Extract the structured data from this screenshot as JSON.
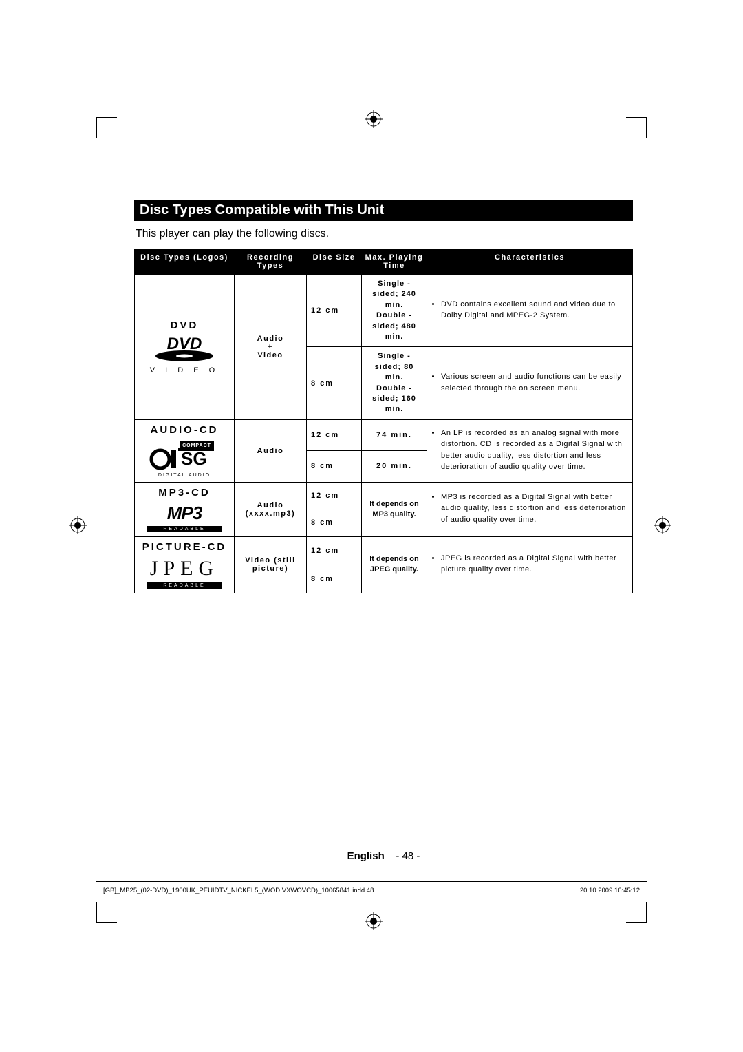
{
  "title": "Disc Types Compatible with This Unit",
  "intro": "This player can play the following discs.",
  "columns": {
    "c0": "Disc Types (Logos)",
    "c1": "Recording Types",
    "c2": "Disc Size",
    "c3": "Max. Playing Time",
    "c4": "Characteristics"
  },
  "dvd": {
    "name": "DVD",
    "logo_text": "DVD",
    "logo_sub": "V I D E O",
    "recording": "Audio\n+\nVideo",
    "size12": "12 cm",
    "size8": "8 cm",
    "time12": "Single - sided; 240 min.\nDouble - sided; 480 min.",
    "time8": "Single - sided; 80 min.\nDouble - sided; 160 min.",
    "char1": "DVD contains excellent sound and video due to Dolby Digital and MPEG-2 System.",
    "char2": "Various screen and audio functions can be easily selected through the on screen menu."
  },
  "audiocd": {
    "name": "AUDIO-CD",
    "logo_line1": "COMPACT",
    "logo_sub": "DIGITAL AUDIO",
    "recording": "Audio",
    "size12": "12 cm",
    "size8": "8 cm",
    "time12": "74 min.",
    "time8": "20 min.",
    "char": "An LP is recorded as an analog signal with more distortion. CD is recorded as a Digital Signal with better audio quality, less distortion and less deterioration of audio quality over time."
  },
  "mp3cd": {
    "name": "MP3-CD",
    "logo_text": "MP3",
    "logo_sub": "READABLE",
    "recording": "Audio (xxxx.mp3)",
    "size12": "12 cm",
    "size8": "8 cm",
    "depends": "It depends on MP3 quality.",
    "char": "MP3 is recorded as a Digital Signal with better audio quality, less distortion and less deterioration of audio quality over time."
  },
  "picturecd": {
    "name": "PICTURE-CD",
    "logo_text": "JPEG",
    "logo_sub": "READABLE",
    "recording": "Video (still picture)",
    "size12": "12 cm",
    "size8": "8 cm",
    "depends": "It depends on JPEG quality.",
    "char": "JPEG  is recorded as a Digital Signal with better picture quality over time."
  },
  "footer": {
    "lang": "English",
    "page": "- 48 -",
    "file": "[GB]_MB25_(02-DVD)_1900UK_PEUIDTV_NICKEL5_(WODIVXWOVCD)_10065841.indd   48",
    "date": "20.10.2009   16:45:12"
  }
}
